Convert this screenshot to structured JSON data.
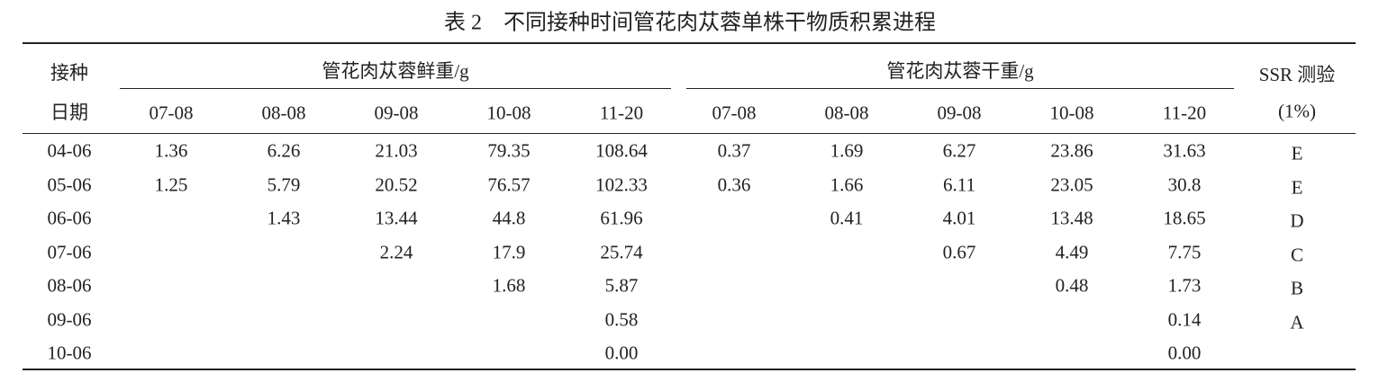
{
  "title": "表 2　不同接种时间管花肉苁蓉单株干物质积累进程",
  "header": {
    "date_label": [
      "接种",
      "日期"
    ],
    "fresh_group": "管花肉苁蓉鲜重/g",
    "dry_group": "管花肉苁蓉干重/g",
    "ssr_label": [
      "SSR 测验",
      "(1%)"
    ],
    "fresh_columns": [
      "07-08",
      "08-08",
      "09-08",
      "10-08",
      "11-20"
    ],
    "dry_columns": [
      "07-08",
      "08-08",
      "09-08",
      "10-08",
      "11-20"
    ]
  },
  "rows": [
    {
      "date": "04-06",
      "fresh": [
        "1.36",
        "6.26",
        "21.03",
        "79.35",
        "108.64"
      ],
      "dry": [
        "0.37",
        "1.69",
        "6.27",
        "23.86",
        "31.63"
      ],
      "ssr": "E"
    },
    {
      "date": "05-06",
      "fresh": [
        "1.25",
        "5.79",
        "20.52",
        "76.57",
        "102.33"
      ],
      "dry": [
        "0.36",
        "1.66",
        "6.11",
        "23.05",
        "30.8"
      ],
      "ssr": "E"
    },
    {
      "date": "06-06",
      "fresh": [
        null,
        "1.43",
        "13.44",
        "44.8",
        "61.96"
      ],
      "dry": [
        null,
        "0.41",
        "4.01",
        "13.48",
        "18.65"
      ],
      "ssr": "D"
    },
    {
      "date": "07-06",
      "fresh": [
        null,
        null,
        "2.24",
        "17.9",
        "25.74"
      ],
      "dry": [
        null,
        null,
        "0.67",
        "4.49",
        "7.75"
      ],
      "ssr": "C"
    },
    {
      "date": "08-06",
      "fresh": [
        null,
        null,
        null,
        "1.68",
        "5.87"
      ],
      "dry": [
        null,
        null,
        null,
        "0.48",
        "1.73"
      ],
      "ssr": "B"
    },
    {
      "date": "09-06",
      "fresh": [
        null,
        null,
        null,
        null,
        "0.58"
      ],
      "dry": [
        null,
        null,
        null,
        null,
        "0.14"
      ],
      "ssr": "A"
    },
    {
      "date": "10-06",
      "fresh": [
        null,
        null,
        null,
        null,
        "0.00"
      ],
      "dry": [
        null,
        null,
        null,
        null,
        "0.00"
      ],
      "ssr": null
    }
  ]
}
